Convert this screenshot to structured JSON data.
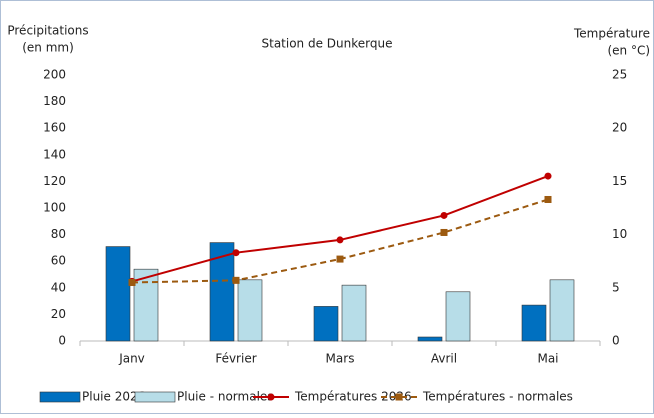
{
  "chart_data": {
    "type": "bar_line",
    "title": "Station de Dunkerque",
    "y_label": [
      "Précipitations",
      "(en mm)"
    ],
    "y2_label": [
      "Température",
      "(en °C)"
    ],
    "categories": [
      "Janv",
      "Février",
      "Mars",
      "Avril",
      "Mai"
    ],
    "series": [
      {
        "name": "Pluie 2026",
        "type": "bar",
        "color": "#0070c0",
        "values": [
          71,
          74,
          26,
          3,
          27
        ]
      },
      {
        "name": "Pluie - normales",
        "type": "bar",
        "color": "#b7dde8",
        "values": [
          54,
          46,
          42,
          37,
          46
        ]
      },
      {
        "name": "Températures 2026",
        "type": "line",
        "axis": "y2",
        "color": "#c00000",
        "dashed": false,
        "values": [
          5.6,
          8.3,
          9.5,
          11.8,
          15.5
        ]
      },
      {
        "name": "Températures - normales",
        "type": "line",
        "axis": "y2",
        "color": "#9c5a10",
        "dashed": true,
        "values": [
          5.5,
          5.7,
          7.7,
          10.2,
          13.3
        ]
      }
    ],
    "ylim": [
      0,
      200
    ],
    "yticks": [
      0,
      20,
      40,
      60,
      80,
      100,
      120,
      140,
      160,
      180,
      200
    ],
    "y2lim": [
      0,
      25
    ],
    "y2ticks": [
      0,
      5,
      10,
      15,
      20,
      25
    ],
    "grid": false,
    "legend": "bottom"
  }
}
